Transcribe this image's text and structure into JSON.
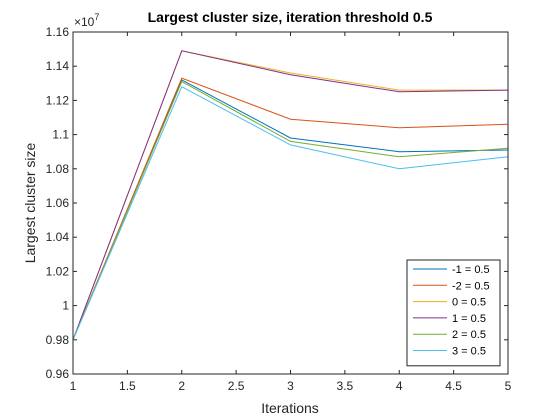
{
  "chart_data": {
    "type": "line",
    "title": "Largest cluster size, iteration threshold 0.5",
    "xlabel": "Iterations",
    "ylabel": "Largest cluster size",
    "y_multiplier_label": "×10",
    "y_multiplier_exponent": "7",
    "xlim": [
      1,
      5
    ],
    "ylim": [
      0.96,
      1.16
    ],
    "x_ticks": [
      "1",
      "1.5",
      "2",
      "2.5",
      "3",
      "3.5",
      "4",
      "4.5",
      "5"
    ],
    "y_ticks": [
      "0.96",
      "0.98",
      "1",
      "1.02",
      "1.04",
      "1.06",
      "1.08",
      "1.1",
      "1.12",
      "1.14",
      "1.16"
    ],
    "x": [
      1,
      2,
      3,
      4,
      5
    ],
    "grid": false,
    "legend_position": "bottom-right",
    "series": [
      {
        "name": "-1 = 0.5",
        "color": "#0072BD",
        "values": [
          0.98,
          1.132,
          1.098,
          1.09,
          1.091
        ]
      },
      {
        "name": "-2 = 0.5",
        "color": "#D95319",
        "values": [
          0.98,
          1.133,
          1.109,
          1.104,
          1.106
        ]
      },
      {
        "name": "0 = 0.5",
        "color": "#EDB120",
        "values": [
          0.98,
          1.149,
          1.136,
          1.126,
          1.126
        ]
      },
      {
        "name": "1 = 0.5",
        "color": "#7E2F8E",
        "values": [
          0.98,
          1.149,
          1.135,
          1.125,
          1.126
        ]
      },
      {
        "name": "2 = 0.5",
        "color": "#77AC30",
        "values": [
          0.98,
          1.131,
          1.096,
          1.087,
          1.092
        ]
      },
      {
        "name": "3 = 0.5",
        "color": "#4DBEEE",
        "values": [
          0.98,
          1.128,
          1.094,
          1.08,
          1.087
        ]
      }
    ]
  }
}
